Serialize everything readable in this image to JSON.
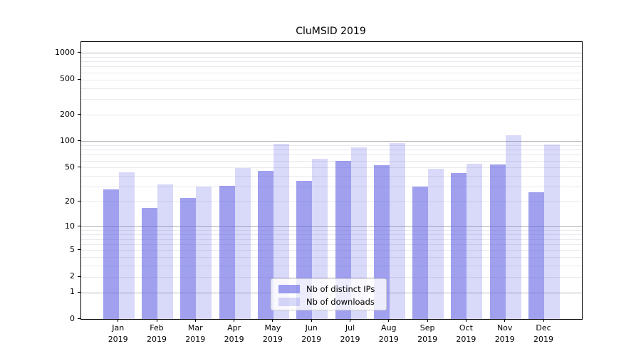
{
  "chart_data": {
    "type": "bar",
    "title": "CluMSID 2019",
    "categories": [
      "Jan",
      "Feb",
      "Mar",
      "Apr",
      "May",
      "Jun",
      "Jul",
      "Aug",
      "Sep",
      "Oct",
      "Nov",
      "Dec"
    ],
    "category_year": "2019",
    "series": [
      {
        "name": "Nb of distinct IPs",
        "values": [
          28,
          17,
          22,
          31,
          46,
          35,
          59,
          53,
          30,
          43,
          54,
          26
        ]
      },
      {
        "name": "Nb of downloads",
        "values": [
          44,
          32,
          30,
          49,
          93,
          63,
          85,
          95,
          48,
          55,
          116,
          91
        ]
      }
    ],
    "yticks": [
      0,
      1,
      2,
      5,
      10,
      20,
      50,
      100,
      200,
      500,
      1000
    ],
    "yscale": "log1p",
    "ylim": [
      0,
      1300
    ],
    "grid": true,
    "legend_position": "lower center",
    "colors": {
      "bar_base": "#6161e4",
      "distinct_ips_alpha": 0.6,
      "downloads_alpha": 0.24,
      "distinct_ips_hex": "#a0a0ef",
      "downloads_hex": "#d9d9f8",
      "grid_major": "#b8b8b8",
      "grid_minor": "#e9e9ef"
    }
  }
}
